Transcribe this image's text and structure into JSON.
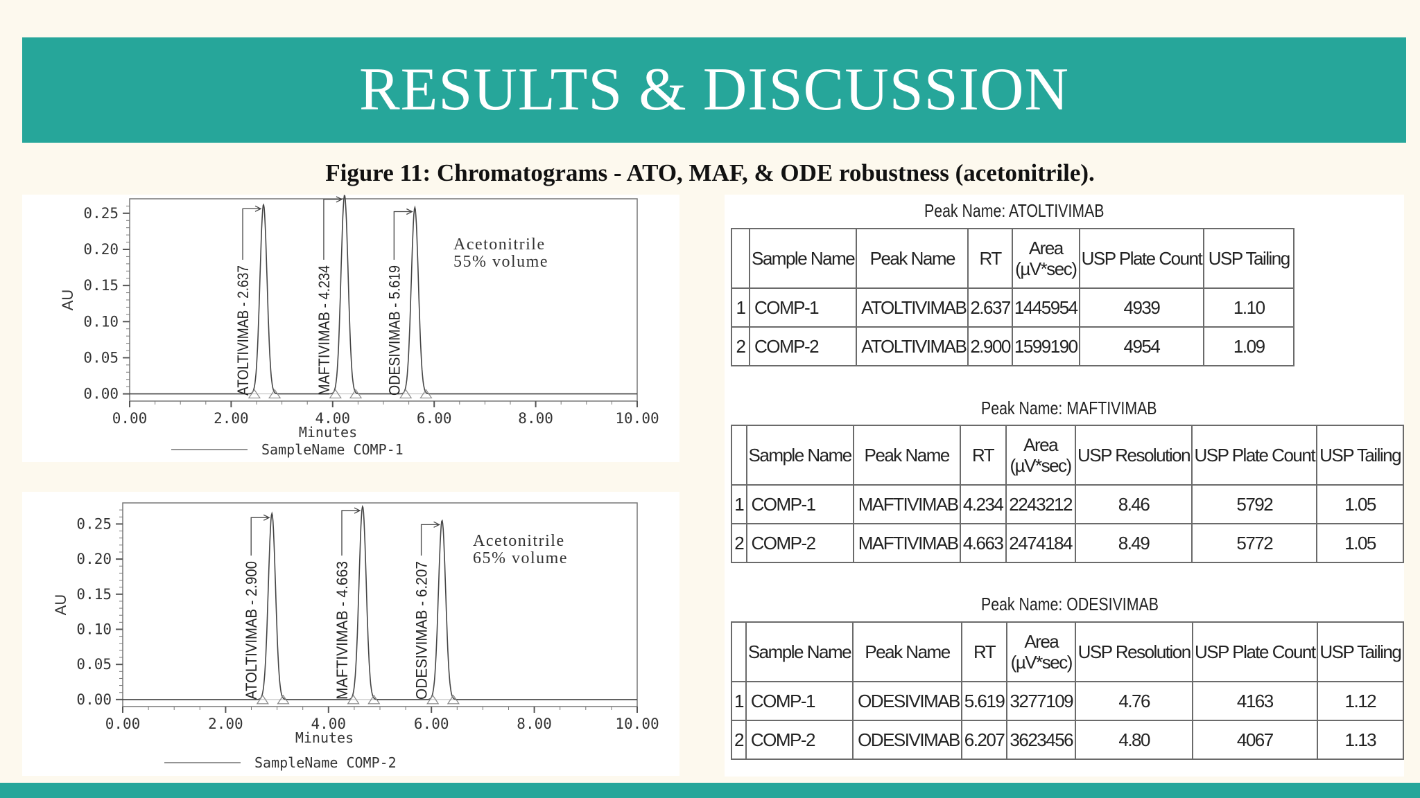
{
  "slide": {
    "title": "RESULTS & DISCUSSION",
    "caption": "Figure 11: Chromatograms - ATO, MAF, & ODE robustness (acetonitrile).",
    "colors": {
      "banner": "#26a69a",
      "background": "#fdf9ee"
    }
  },
  "chart_data": [
    {
      "type": "line",
      "xlabel": "Minutes",
      "ylabel": "AU",
      "xlim": [
        0,
        10
      ],
      "ylim": [
        -0.01,
        0.27
      ],
      "xticks": [
        "0.00",
        "2.00",
        "4.00",
        "6.00",
        "8.00",
        "10.00"
      ],
      "yticks": [
        "0.00",
        "0.05",
        "0.10",
        "0.15",
        "0.20",
        "0.25"
      ],
      "annotation": [
        "Acetonitrile",
        "55% volume"
      ],
      "legend": "SampleName COMP-1",
      "peaks": [
        {
          "label": "ATOLTIVIMAB - 2.637",
          "rt": 2.637,
          "height": 0.262
        },
        {
          "label": "MAFTIVIMAB - 4.234",
          "rt": 4.234,
          "height": 0.275
        },
        {
          "label": "ODESIVIMAB - 5.619",
          "rt": 5.619,
          "height": 0.258
        }
      ]
    },
    {
      "type": "line",
      "xlabel": "Minutes",
      "ylabel": "AU",
      "xlim": [
        0,
        10
      ],
      "ylim": [
        -0.01,
        0.28
      ],
      "xticks": [
        "0.00",
        "2.00",
        "4.00",
        "6.00",
        "8.00",
        "10.00"
      ],
      "yticks": [
        "0.00",
        "0.05",
        "0.10",
        "0.15",
        "0.20",
        "0.25"
      ],
      "annotation": [
        "Acetonitrile",
        "65% volume"
      ],
      "legend": "SampleName COMP-2",
      "peaks": [
        {
          "label": "ATOLTIVIMAB - 2.900",
          "rt": 2.9,
          "height": 0.265
        },
        {
          "label": "MAFTIVIMAB - 4.663",
          "rt": 4.663,
          "height": 0.275
        },
        {
          "label": "ODESIVIMAB - 6.207",
          "rt": 6.207,
          "height": 0.255
        }
      ]
    }
  ],
  "tables": [
    {
      "title": "Peak Name: ATOLTIVIMAB",
      "headers": [
        "",
        "Sample Name",
        "Peak Name",
        "RT",
        "Area\n(µV*sec)",
        "USP Plate Count",
        "USP Tailing"
      ],
      "rows": [
        [
          "1",
          "COMP-1",
          "ATOLTIVIMAB",
          "2.637",
          "1445954",
          "4939",
          "1.10"
        ],
        [
          "2",
          "COMP-2",
          "ATOLTIVIMAB",
          "2.900",
          "1599190",
          "4954",
          "1.09"
        ]
      ]
    },
    {
      "title": "Peak Name: MAFTIVIMAB",
      "headers": [
        "",
        "Sample Name",
        "Peak Name",
        "RT",
        "Area\n(µV*sec)",
        "USP Resolution",
        "USP Plate Count",
        "USP Tailing"
      ],
      "rows": [
        [
          "1",
          "COMP-1",
          "MAFTIVIMAB",
          "4.234",
          "2243212",
          "8.46",
          "5792",
          "1.05"
        ],
        [
          "2",
          "COMP-2",
          "MAFTIVIMAB",
          "4.663",
          "2474184",
          "8.49",
          "5772",
          "1.05"
        ]
      ]
    },
    {
      "title": "Peak Name: ODESIVIMAB",
      "headers": [
        "",
        "Sample Name",
        "Peak Name",
        "RT",
        "Area\n(µV*sec)",
        "USP Resolution",
        "USP Plate Count",
        "USP Tailing"
      ],
      "rows": [
        [
          "1",
          "COMP-1",
          "ODESIVIMAB",
          "5.619",
          "3277109",
          "4.76",
          "4163",
          "1.12"
        ],
        [
          "2",
          "COMP-2",
          "ODESIVIMAB",
          "6.207",
          "3623456",
          "4.80",
          "4067",
          "1.13"
        ]
      ]
    }
  ]
}
